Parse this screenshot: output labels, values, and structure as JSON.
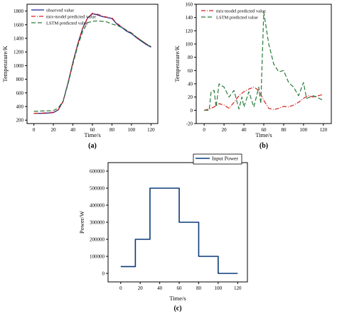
{
  "chart_data": [
    {
      "type": "line",
      "panel": "(a)",
      "xlabel": "Time/s",
      "ylabel": "Temperature/K",
      "xlim": [
        -7,
        127
      ],
      "ylim": [
        150,
        1900
      ],
      "xticks": [
        0,
        20,
        40,
        60,
        80,
        100,
        120
      ],
      "yticks": [
        200,
        400,
        600,
        800,
        1000,
        1200,
        1400,
        1600,
        1800
      ],
      "grid": false,
      "legend_position": "top-left",
      "series": [
        {
          "name": "observed value",
          "color": "#1f1f8f",
          "dash": "solid",
          "x": [
            0,
            10,
            20,
            25,
            30,
            35,
            40,
            45,
            50,
            55,
            60,
            65,
            70,
            75,
            80,
            85,
            90,
            95,
            100,
            105,
            110,
            115,
            120
          ],
          "y": [
            300,
            300,
            310,
            350,
            480,
            750,
            1050,
            1320,
            1550,
            1700,
            1760,
            1745,
            1720,
            1705,
            1690,
            1610,
            1560,
            1505,
            1470,
            1410,
            1360,
            1310,
            1270
          ]
        },
        {
          "name": "mix-model predicted value",
          "color": "#d62020",
          "dash": "6,2,1,2",
          "x": [
            0,
            10,
            20,
            25,
            30,
            35,
            40,
            45,
            50,
            55,
            60,
            65,
            70,
            75,
            80,
            85,
            90,
            95,
            100,
            105,
            110,
            115,
            120
          ],
          "y": [
            300,
            305,
            315,
            355,
            470,
            740,
            1040,
            1310,
            1540,
            1695,
            1770,
            1755,
            1730,
            1710,
            1700,
            1620,
            1570,
            1515,
            1480,
            1420,
            1370,
            1320,
            1280
          ]
        },
        {
          "name": "LSTM predicted value",
          "color": "#2a7a3a",
          "dash": "6,3",
          "x": [
            0,
            10,
            20,
            25,
            30,
            35,
            40,
            45,
            50,
            55,
            60,
            65,
            70,
            75,
            80,
            85,
            90,
            95,
            100,
            105,
            110,
            115,
            120
          ],
          "y": [
            330,
            335,
            340,
            380,
            480,
            730,
            1020,
            1290,
            1500,
            1630,
            1650,
            1655,
            1650,
            1640,
            1610,
            1590,
            1560,
            1520,
            1480,
            1420,
            1370,
            1320,
            1280
          ]
        }
      ]
    },
    {
      "type": "line",
      "panel": "(b)",
      "xlabel": "Time/s",
      "ylabel": "Temperature/K",
      "xlim": [
        -8,
        128
      ],
      "ylim": [
        -20,
        160
      ],
      "xticks": [
        0,
        20,
        40,
        60,
        80,
        100,
        120
      ],
      "yticks": [
        -20,
        0,
        20,
        40,
        60,
        80,
        100,
        120,
        140,
        160
      ],
      "grid": false,
      "legend_position": "top-left",
      "series": [
        {
          "name": "mix-model predicted value",
          "color": "#d62020",
          "dash": "6,2,1,2",
          "x": [
            0,
            5,
            10,
            15,
            20,
            25,
            30,
            35,
            40,
            45,
            50,
            55,
            60,
            65,
            70,
            75,
            80,
            85,
            90,
            95,
            100,
            105,
            110,
            115,
            120
          ],
          "y": [
            0,
            2,
            5,
            10,
            8,
            3,
            12,
            22,
            28,
            32,
            35,
            30,
            15,
            3,
            1,
            3,
            6,
            5,
            8,
            12,
            18,
            22,
            20,
            22,
            24
          ]
        },
        {
          "name": "LSTM predicted value",
          "color": "#2a7a3a",
          "dash": "6,3",
          "x": [
            0,
            5,
            7,
            10,
            12,
            15,
            20,
            25,
            30,
            35,
            38,
            40,
            45,
            50,
            55,
            57,
            60,
            65,
            70,
            75,
            80,
            85,
            90,
            95,
            100,
            103,
            110,
            120
          ],
          "y": [
            0,
            0,
            28,
            30,
            5,
            40,
            35,
            20,
            30,
            2,
            20,
            5,
            28,
            5,
            35,
            10,
            148,
            100,
            70,
            58,
            60,
            42,
            35,
            22,
            42,
            18,
            22,
            15
          ]
        }
      ]
    },
    {
      "type": "line",
      "panel": "(c)",
      "xlabel": "Time/s",
      "ylabel": "Power/W",
      "xlim": [
        -13,
        130
      ],
      "ylim": [
        -50000,
        650000
      ],
      "xticks": [
        0,
        20,
        40,
        60,
        80,
        100,
        120
      ],
      "yticks": [
        0,
        100000,
        200000,
        300000,
        400000,
        500000,
        600000
      ],
      "grid": false,
      "legend_position": "top-center",
      "series": [
        {
          "name": "Input Power",
          "color": "#0b3a7a",
          "dash": "solid",
          "x": [
            0,
            15,
            15,
            30,
            30,
            60,
            60,
            80,
            80,
            100,
            100,
            120
          ],
          "y": [
            40000,
            40000,
            200000,
            200000,
            500000,
            500000,
            300000,
            300000,
            100000,
            100000,
            0,
            0
          ]
        }
      ]
    }
  ]
}
